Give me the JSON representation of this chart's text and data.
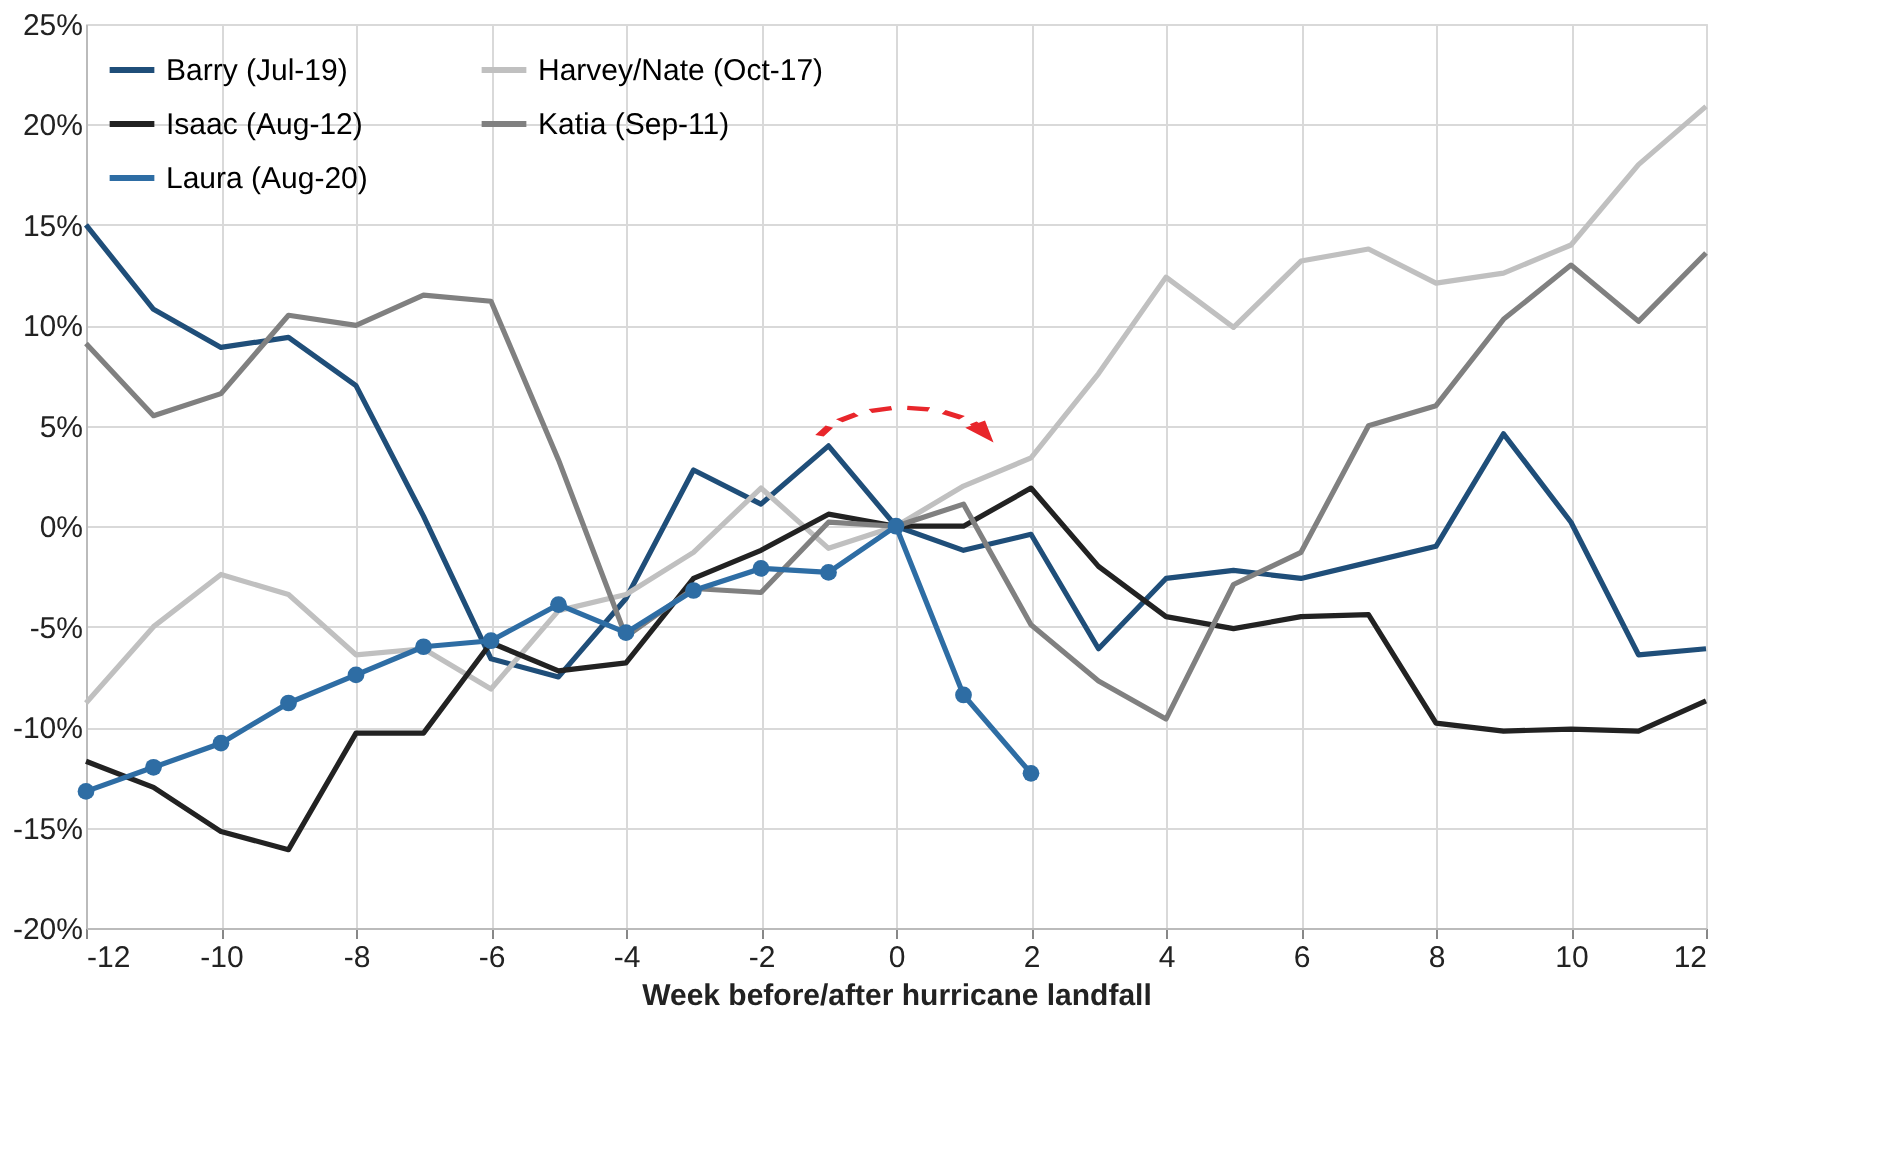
{
  "chart_data": {
    "type": "line",
    "xlabel": "Week before/after hurricane landfall",
    "x": [
      -12,
      -11,
      -10,
      -9,
      -8,
      -7,
      -6,
      -5,
      -4,
      -3,
      -2,
      -1,
      0,
      1,
      2,
      3,
      4,
      5,
      6,
      7,
      8,
      9,
      10,
      11,
      12
    ],
    "series": [
      {
        "name": "Barry (Jul-19)",
        "color": "#1f4e79",
        "values": [
          15,
          10.8,
          8.9,
          9.4,
          7.0,
          0.5,
          -6.6,
          -7.5,
          -3.6,
          2.8,
          1.1,
          4.0,
          0,
          -1.2,
          -0.4,
          -6.1,
          -2.6,
          -2.2,
          -2.6,
          -1.8,
          -1.0,
          4.6,
          0.2,
          -6.4,
          -6.1
        ]
      },
      {
        "name": "Harvey/Nate (Oct-17)",
        "color": "#c0c0c0",
        "values": [
          -8.8,
          -5.0,
          -2.4,
          -3.4,
          -6.4,
          -6.1,
          -8.1,
          -4.2,
          -3.4,
          -1.3,
          1.9,
          -1.1,
          0,
          2.0,
          3.4,
          7.6,
          12.4,
          9.9,
          13.2,
          13.8,
          12.1,
          12.6,
          14.0,
          18.0,
          20.9
        ]
      },
      {
        "name": "Isaac (Aug-12)",
        "color": "#222222",
        "values": [
          -11.7,
          -13.0,
          -15.2,
          -16.1,
          -10.3,
          -10.3,
          -5.8,
          -7.2,
          -6.8,
          -2.6,
          -1.2,
          0.6,
          0,
          0,
          1.9,
          -2.0,
          -4.5,
          -5.1,
          -4.5,
          -4.4,
          -9.8,
          -10.2,
          -10.1,
          -10.2,
          -8.7
        ]
      },
      {
        "name": "Katia (Sep-11)",
        "color": "#808080",
        "values": [
          9.1,
          5.5,
          6.6,
          10.5,
          10.0,
          11.5,
          11.2,
          3.3,
          -5.5,
          -3.1,
          -3.3,
          0.2,
          0,
          1.1,
          -4.9,
          -7.7,
          -9.6,
          -2.9,
          -1.3,
          5.0,
          6.0,
          10.3,
          13.0,
          10.2,
          13.6
        ]
      },
      {
        "name": "Laura (Aug-20)",
        "color": "#2e6da4",
        "marker": "circle",
        "values": [
          -13.2,
          -12.0,
          -10.8,
          -8.8,
          -7.4,
          -6.0,
          -5.7,
          -3.9,
          -5.3,
          -3.2,
          -2.1,
          -2.3,
          0,
          -8.4,
          -12.3,
          null,
          null,
          null,
          null,
          null,
          null,
          null,
          null,
          null,
          null
        ]
      }
    ],
    "xlim": [
      -12,
      12
    ],
    "xticks": [
      -12,
      -10,
      -8,
      -6,
      -4,
      -2,
      0,
      2,
      4,
      6,
      8,
      10,
      12
    ],
    "ylim": [
      -20,
      25
    ],
    "yticks": [
      {
        "value": -20,
        "label": "-20%"
      },
      {
        "value": -15,
        "label": "-15%"
      },
      {
        "value": -10,
        "label": "-10%"
      },
      {
        "value": -5,
        "label": "-5%"
      },
      {
        "value": 0,
        "label": "0%"
      },
      {
        "value": 5,
        "label": "5%"
      },
      {
        "value": 10,
        "label": "10%"
      },
      {
        "value": 15,
        "label": "15%"
      },
      {
        "value": 20,
        "label": "20%"
      },
      {
        "value": 25,
        "label": "25%"
      }
    ],
    "grid": true,
    "legend": "top left",
    "line_style": "solid"
  }
}
